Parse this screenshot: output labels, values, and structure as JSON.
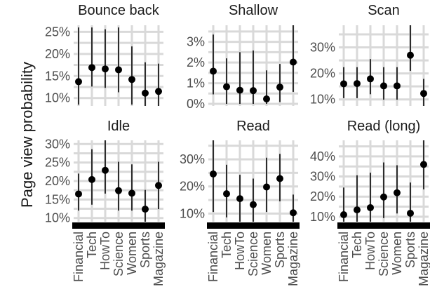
{
  "chart_data": {
    "type": "scatter",
    "subtype": "point-range facets",
    "ylabel": "Page view probability",
    "xlabel": "",
    "categories": [
      "Financial",
      "Tech",
      "HowTo",
      "Science",
      "Women",
      "Sports",
      "Magazine"
    ],
    "grid": true,
    "colors": {
      "grid": "#d9d9d9",
      "mark": "#000000",
      "background": "#ffffff"
    },
    "facets": [
      {
        "title": "Bounce back",
        "ylim": [
          8.2,
          26.5
        ],
        "yticks": [
          10,
          15,
          20,
          25
        ],
        "ytick_labels": [
          "10%",
          "15%",
          "20%",
          "25%"
        ],
        "values": [
          13.7,
          16.9,
          16.6,
          16.4,
          14.2,
          11.1,
          11.5
        ],
        "lower": [
          8.5,
          12.6,
          12.3,
          11.3,
          8.5,
          7.8,
          7.5
        ],
        "upper": [
          26.0,
          26.0,
          25.6,
          26.0,
          21.7,
          18.1,
          17.8
        ]
      },
      {
        "title": "Shallow",
        "ylim": [
          -0.1,
          3.8
        ],
        "yticks": [
          0,
          1,
          2,
          3
        ],
        "ytick_labels": [
          "0%",
          "1%",
          "2%",
          "3%"
        ],
        "values": [
          1.58,
          0.83,
          0.66,
          0.64,
          0.24,
          0.81,
          2.02
        ],
        "lower": [
          0.46,
          0.0,
          0.0,
          0.0,
          0.0,
          0.09,
          0.58
        ],
        "upper": [
          3.35,
          2.2,
          2.5,
          2.58,
          1.62,
          1.93,
          3.8
        ]
      },
      {
        "title": "Scan",
        "ylim": [
          7.5,
          38.5
        ],
        "yticks": [
          10,
          20,
          30
        ],
        "ytick_labels": [
          "10%",
          "20%",
          "30%"
        ],
        "values": [
          16.0,
          16.1,
          17.9,
          15.2,
          15.2,
          27.0,
          12.3
        ],
        "lower": [
          10.5,
          10.5,
          12.0,
          9.9,
          9.9,
          21.0,
          7.5
        ],
        "upper": [
          22.4,
          22.4,
          25.5,
          22.4,
          22.4,
          38.5,
          17.9
        ]
      },
      {
        "title": "Idle",
        "ylim": [
          9.0,
          31.0
        ],
        "yticks": [
          10,
          15,
          20,
          25,
          30
        ],
        "ytick_labels": [
          "10%",
          "15%",
          "20%",
          "25%",
          "30%"
        ],
        "values": [
          16.5,
          20.4,
          22.9,
          17.4,
          16.7,
          12.4,
          18.8
        ],
        "lower": [
          12.0,
          13.6,
          16.6,
          12.0,
          12.0,
          9.0,
          12.4
        ],
        "upper": [
          22.0,
          28.6,
          31.0,
          25.2,
          24.5,
          17.6,
          25.2
        ]
      },
      {
        "title": "Read",
        "ylim": [
          7.0,
          37.0
        ],
        "yticks": [
          10,
          20,
          30
        ],
        "ytick_labels": [
          "10%",
          "20%",
          "30%"
        ],
        "values": [
          24.6,
          17.3,
          15.5,
          13.3,
          19.8,
          22.9,
          10.3
        ],
        "lower": [
          10.6,
          8.6,
          7.0,
          7.0,
          10.6,
          14.5,
          7.0
        ],
        "upper": [
          37.0,
          28.0,
          24.3,
          22.9,
          30.6,
          32.0,
          17.0
        ]
      },
      {
        "title": "Read (long)",
        "ylim": [
          7.5,
          48.0
        ],
        "yticks": [
          10,
          20,
          30,
          40
        ],
        "ytick_labels": [
          "10%",
          "20%",
          "30%",
          "40%"
        ],
        "values": [
          11.0,
          13.4,
          14.5,
          19.8,
          21.9,
          11.7,
          36.0
        ],
        "lower": [
          7.5,
          7.5,
          7.5,
          9.3,
          11.6,
          7.5,
          23.6
        ],
        "upper": [
          24.5,
          30.6,
          31.9,
          37.0,
          35.6,
          27.0,
          48.0
        ]
      }
    ]
  }
}
